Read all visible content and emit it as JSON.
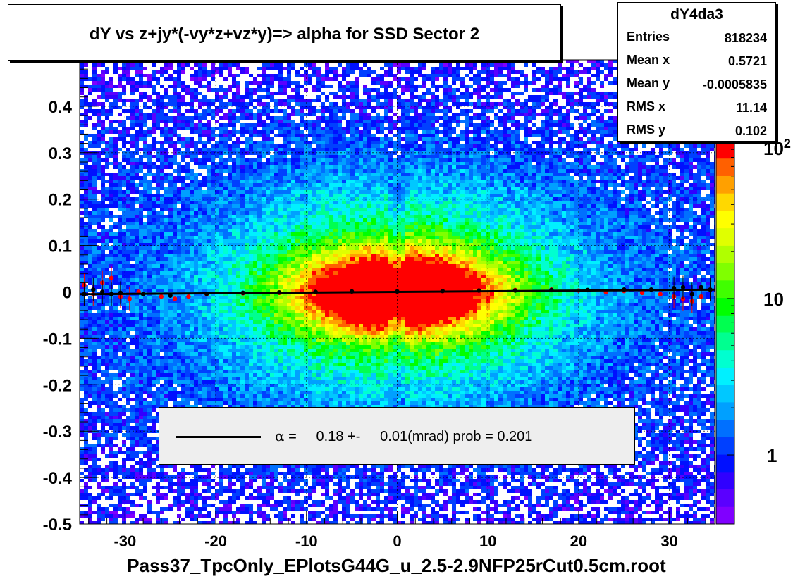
{
  "title": "dY vs  z+jy*(-vy*z+vz*y)=> alpha for SSD Sector 2",
  "stats": {
    "name": "dY4da3",
    "rows": [
      {
        "label": "Entries",
        "value": "818234"
      },
      {
        "label": "Mean x",
        "value": "0.5721"
      },
      {
        "label": "Mean y",
        "value": "-0.0005835"
      },
      {
        "label": "RMS x",
        "value": "11.14"
      },
      {
        "label": "RMS y",
        "value": "0.102"
      }
    ]
  },
  "legend": {
    "symbol": "α",
    "text": " =     0.18 +-     0.01(mrad) prob = 0.201"
  },
  "x_title": "Pass37_TpcOnly_EPlotsG44G_u_2.5-2.9NFP25rCut0.5cm.root",
  "colors": {
    "fit_line": "#000000",
    "points_red": "#ff0000",
    "points_black": "#000000",
    "palette": [
      "#8000ff",
      "#5a00ff",
      "#3000ff",
      "#0010ff",
      "#0040ff",
      "#0070ff",
      "#00a0ff",
      "#00c8ff",
      "#00f0ff",
      "#00ffd0",
      "#00ff90",
      "#00ff50",
      "#00ff00",
      "#40ff00",
      "#80ff00",
      "#b0ff00",
      "#e0ff00",
      "#ffff00",
      "#ffd800",
      "#ffa000",
      "#ff6000",
      "#ff0000"
    ]
  },
  "chart_data": {
    "type": "heatmap",
    "title": "dY vs  z+jy*(-vy*z+vz*y)=> alpha for SSD Sector 2",
    "xlabel": "Pass37_TpcOnly_EPlotsG44G_u_2.5-2.9NFP25rCut0.5cm.root",
    "ylabel": "",
    "xlim": [
      -35,
      35
    ],
    "ylim": [
      -0.5,
      0.5
    ],
    "x_ticks": [
      -30,
      -20,
      -10,
      0,
      10,
      20,
      30
    ],
    "x_tick_labels": [
      "-30",
      "-20",
      "-10",
      "0",
      "10",
      "20",
      "30"
    ],
    "y_ticks": [
      -0.5,
      -0.4,
      -0.3,
      -0.2,
      -0.1,
      0,
      0.1,
      0.2,
      0.3,
      0.4
    ],
    "y_tick_labels": [
      "-0.5",
      "-0.4",
      "-0.3",
      "-0.2",
      "-0.1",
      "0",
      "0.1",
      "0.2",
      "0.3",
      "0.4"
    ],
    "z_scale": "log",
    "z_ticks": [
      1,
      10,
      100
    ],
    "z_tick_labels": [
      "1",
      "10",
      "10²"
    ],
    "grid": true,
    "fit_line": {
      "x": [
        -35,
        35
      ],
      "y": [
        -0.005,
        0.005
      ]
    },
    "profile_series": [
      {
        "marker": "red",
        "points": [
          [
            -34.5,
            0.015
          ],
          [
            -33.5,
            -0.005
          ],
          [
            -32.5,
            0.02
          ],
          [
            -31.5,
            0.03
          ],
          [
            -30.5,
            -0.01
          ],
          [
            -29.5,
            -0.015
          ],
          [
            -28.5,
            0.0
          ],
          [
            -26,
            -0.01
          ],
          [
            -24.5,
            -0.015
          ],
          [
            -23,
            -0.01
          ],
          [
            -21,
            -0.005
          ],
          [
            -17,
            -0.003
          ],
          [
            -13,
            -0.002
          ],
          [
            -9,
            0.0
          ],
          [
            -5,
            0.001
          ],
          [
            0,
            0.002
          ],
          [
            5,
            0.002
          ],
          [
            9,
            0.002
          ],
          [
            13,
            0.004
          ],
          [
            17,
            0.005
          ],
          [
            20,
            0.003
          ],
          [
            23,
            0.0
          ],
          [
            25,
            0.002
          ],
          [
            27,
            -0.002
          ],
          [
            29,
            -0.005
          ],
          [
            30.5,
            -0.01
          ],
          [
            31.5,
            -0.015
          ],
          [
            32.5,
            -0.02
          ],
          [
            33.5,
            -0.01
          ],
          [
            34.5,
            0.005
          ]
        ]
      },
      {
        "marker": "black",
        "points": [
          [
            -34.5,
            -0.005
          ],
          [
            -33.5,
            0.005
          ],
          [
            -32.5,
            0.0
          ],
          [
            -31.5,
            -0.005
          ],
          [
            -30.5,
            -0.002
          ],
          [
            -28,
            -0.005
          ],
          [
            -25,
            -0.008
          ],
          [
            -21,
            -0.004
          ],
          [
            -17,
            -0.002
          ],
          [
            -13,
            -0.001
          ],
          [
            -9,
            0.0
          ],
          [
            -5,
            0.001
          ],
          [
            0,
            0.001
          ],
          [
            5,
            0.002
          ],
          [
            9,
            0.003
          ],
          [
            13,
            0.003
          ],
          [
            17,
            0.004
          ],
          [
            21,
            0.004
          ],
          [
            25,
            0.005
          ],
          [
            28,
            0.005
          ],
          [
            30.5,
            0.008
          ],
          [
            31.5,
            0.01
          ],
          [
            32.5,
            -0.005
          ],
          [
            33.5,
            0.01
          ],
          [
            34.5,
            0.005
          ]
        ]
      }
    ]
  }
}
